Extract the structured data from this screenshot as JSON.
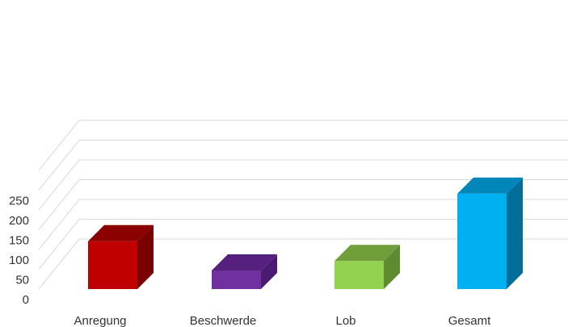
{
  "chart_data": {
    "type": "bar",
    "title": "",
    "xlabel": "",
    "ylabel": "",
    "categories": [
      "Anregung",
      "Beschwerde",
      "Lob",
      "Gesamt"
    ],
    "values": [
      121,
      47,
      71,
      241
    ],
    "yticks": [
      0,
      50,
      100,
      150,
      200,
      250
    ],
    "ylim": [
      0,
      300
    ],
    "grid": true,
    "legend": "none",
    "colors": [
      {
        "front": "#c00000",
        "top": "#8b0000",
        "side": "#7a0000"
      },
      {
        "front": "#7030a0",
        "top": "#55207e",
        "side": "#4a1b70"
      },
      {
        "front": "#92d050",
        "top": "#6f9e3a",
        "side": "#5e8a30"
      },
      {
        "front": "#00b0f0",
        "top": "#0086b8",
        "side": "#006e98"
      }
    ]
  }
}
